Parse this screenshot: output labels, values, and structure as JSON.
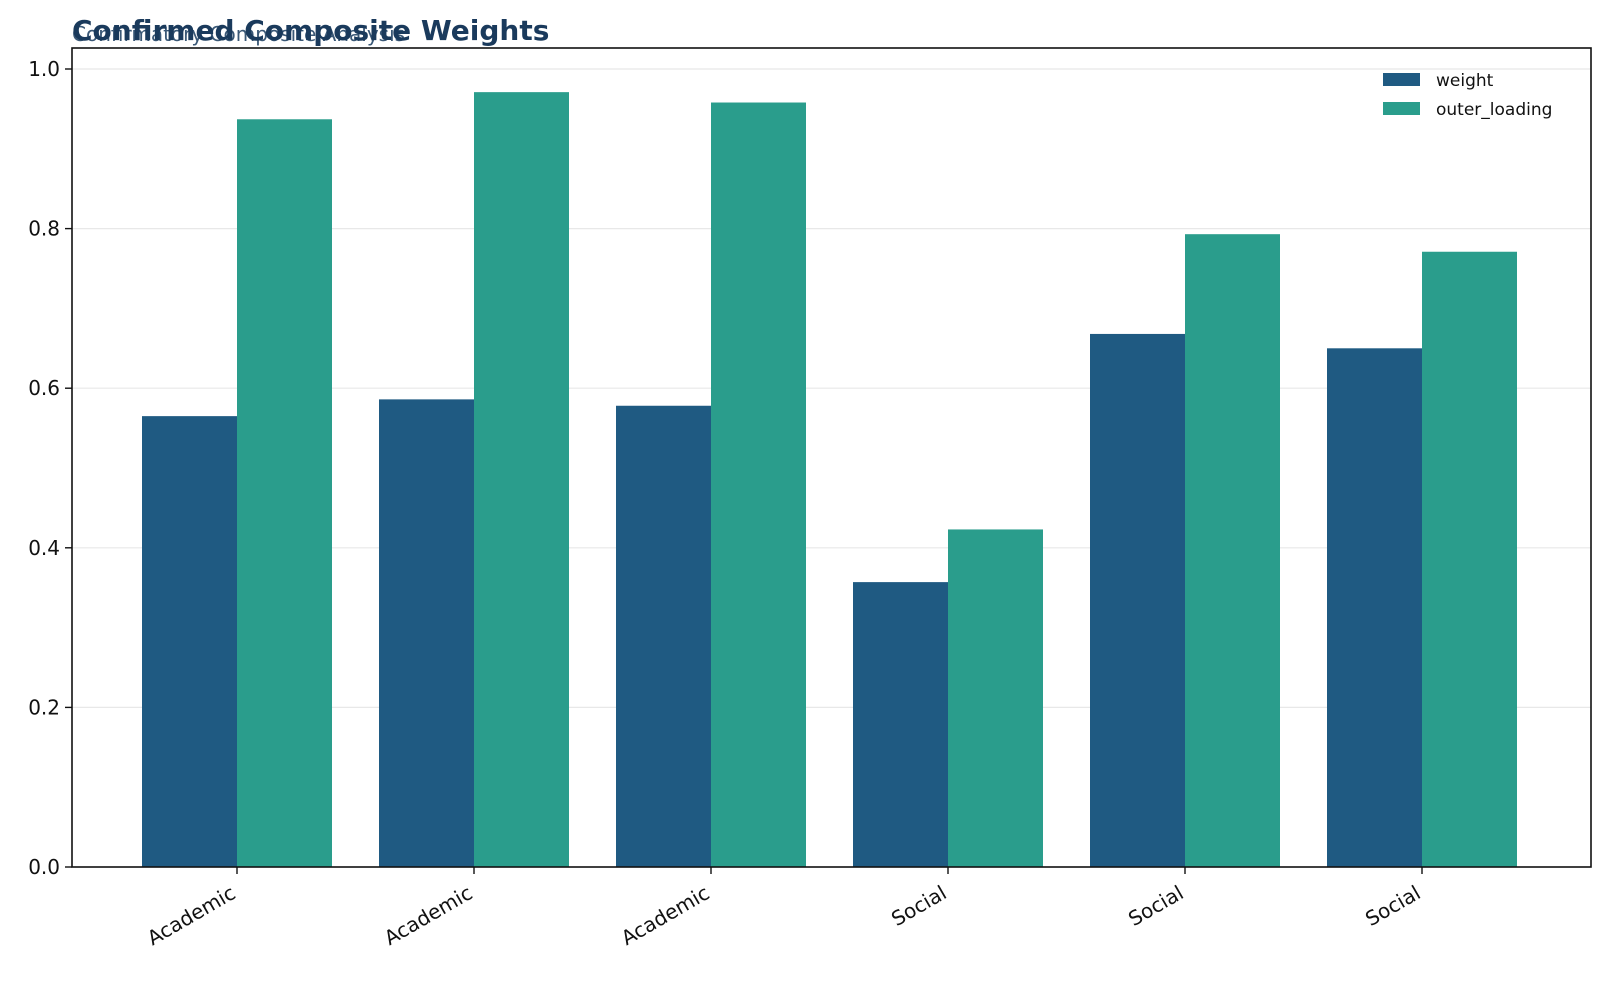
{
  "chart_data": {
    "type": "bar",
    "title": "Confirmed Composite Weights",
    "subtitle": "Confirmatory Composite Analysis",
    "xlabel": "",
    "ylabel": "",
    "categories": [
      "Academic",
      "Academic",
      "Academic",
      "Social",
      "Social",
      "Social"
    ],
    "series": [
      {
        "name": "weight",
        "color": "#1f5a82",
        "values": [
          0.565,
          0.586,
          0.578,
          0.357,
          0.668,
          0.65
        ]
      },
      {
        "name": "outer_loading",
        "color": "#2a9d8c",
        "values": [
          0.937,
          0.971,
          0.958,
          0.423,
          0.793,
          0.771
        ]
      }
    ],
    "ylim": [
      0,
      1.0
    ],
    "yticks": [
      "0.0",
      "0.2",
      "0.4",
      "0.6",
      "0.8",
      "1.0"
    ],
    "grid": true,
    "legend_position": "top-right"
  }
}
